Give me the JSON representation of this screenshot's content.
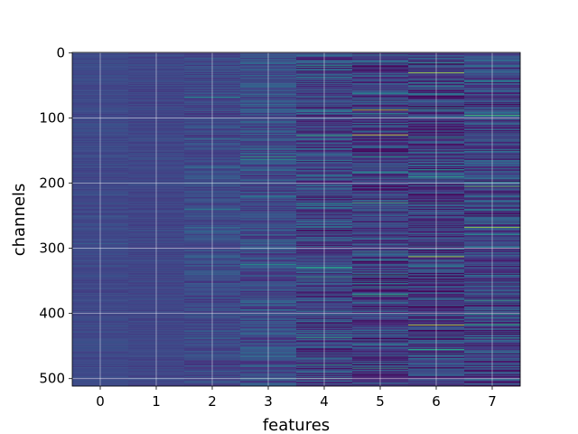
{
  "chart_data": {
    "type": "heatmap",
    "title": "",
    "xlabel": "features",
    "ylabel": "channels",
    "x_ticks": [
      "0",
      "1",
      "2",
      "3",
      "4",
      "5",
      "6",
      "7"
    ],
    "y_ticks": [
      "0",
      "100",
      "200",
      "300",
      "400",
      "500"
    ],
    "x_categories": [
      0,
      1,
      2,
      3,
      4,
      5,
      6,
      7
    ],
    "y_range": [
      0,
      511
    ],
    "n_channels": 512,
    "y_axis_inverted": true,
    "grid": true,
    "colormap": "viridis",
    "colormap_stops": [
      "#440154",
      "#482878",
      "#3e4989",
      "#31688e",
      "#26828e",
      "#1f9e89",
      "#35b779",
      "#6ece58",
      "#b5de2b",
      "#fde725"
    ],
    "columns": [
      {
        "feature": 0,
        "base": 0.22,
        "spread": 0.04,
        "highlights": []
      },
      {
        "feature": 1,
        "base": 0.21,
        "spread": 0.04,
        "highlights": []
      },
      {
        "feature": 2,
        "base": 0.22,
        "spread": 0.08,
        "highlights": [
          {
            "channel": 68,
            "value": 0.5
          },
          {
            "channel": 240,
            "value": 0.45
          }
        ]
      },
      {
        "feature": 3,
        "base": 0.23,
        "spread": 0.12,
        "highlights": [
          {
            "channel": 160,
            "value": 0.6
          },
          {
            "channel": 325,
            "value": 0.55
          },
          {
            "channel": 500,
            "value": 0.5
          }
        ]
      },
      {
        "feature": 4,
        "base": 0.2,
        "spread": 0.17,
        "highlights": [
          {
            "channel": 127,
            "value": 0.65
          },
          {
            "channel": 330,
            "value": 0.6
          },
          {
            "channel": 437,
            "value": 0.6
          },
          {
            "channel": 500,
            "value": 0.55
          }
        ]
      },
      {
        "feature": 5,
        "base": 0.18,
        "spread": 0.18,
        "highlights": [
          {
            "channel": 88,
            "value": 0.9
          },
          {
            "channel": 126,
            "value": 0.95
          },
          {
            "channel": 184,
            "value": 0.55
          },
          {
            "channel": 230,
            "value": 0.7
          },
          {
            "channel": 373,
            "value": 0.6
          },
          {
            "channel": 484,
            "value": 0.6
          }
        ]
      },
      {
        "feature": 6,
        "base": 0.18,
        "spread": 0.2,
        "highlights": [
          {
            "channel": 31,
            "value": 0.9
          },
          {
            "channel": 190,
            "value": 0.6
          },
          {
            "channel": 313,
            "value": 0.9
          },
          {
            "channel": 418,
            "value": 0.92
          },
          {
            "channel": 455,
            "value": 0.6
          }
        ]
      },
      {
        "feature": 7,
        "base": 0.2,
        "spread": 0.18,
        "highlights": [
          {
            "channel": 96,
            "value": 0.7
          },
          {
            "channel": 205,
            "value": 0.75
          },
          {
            "channel": 268,
            "value": 0.85
          },
          {
            "channel": 380,
            "value": 0.6
          }
        ]
      }
    ]
  }
}
